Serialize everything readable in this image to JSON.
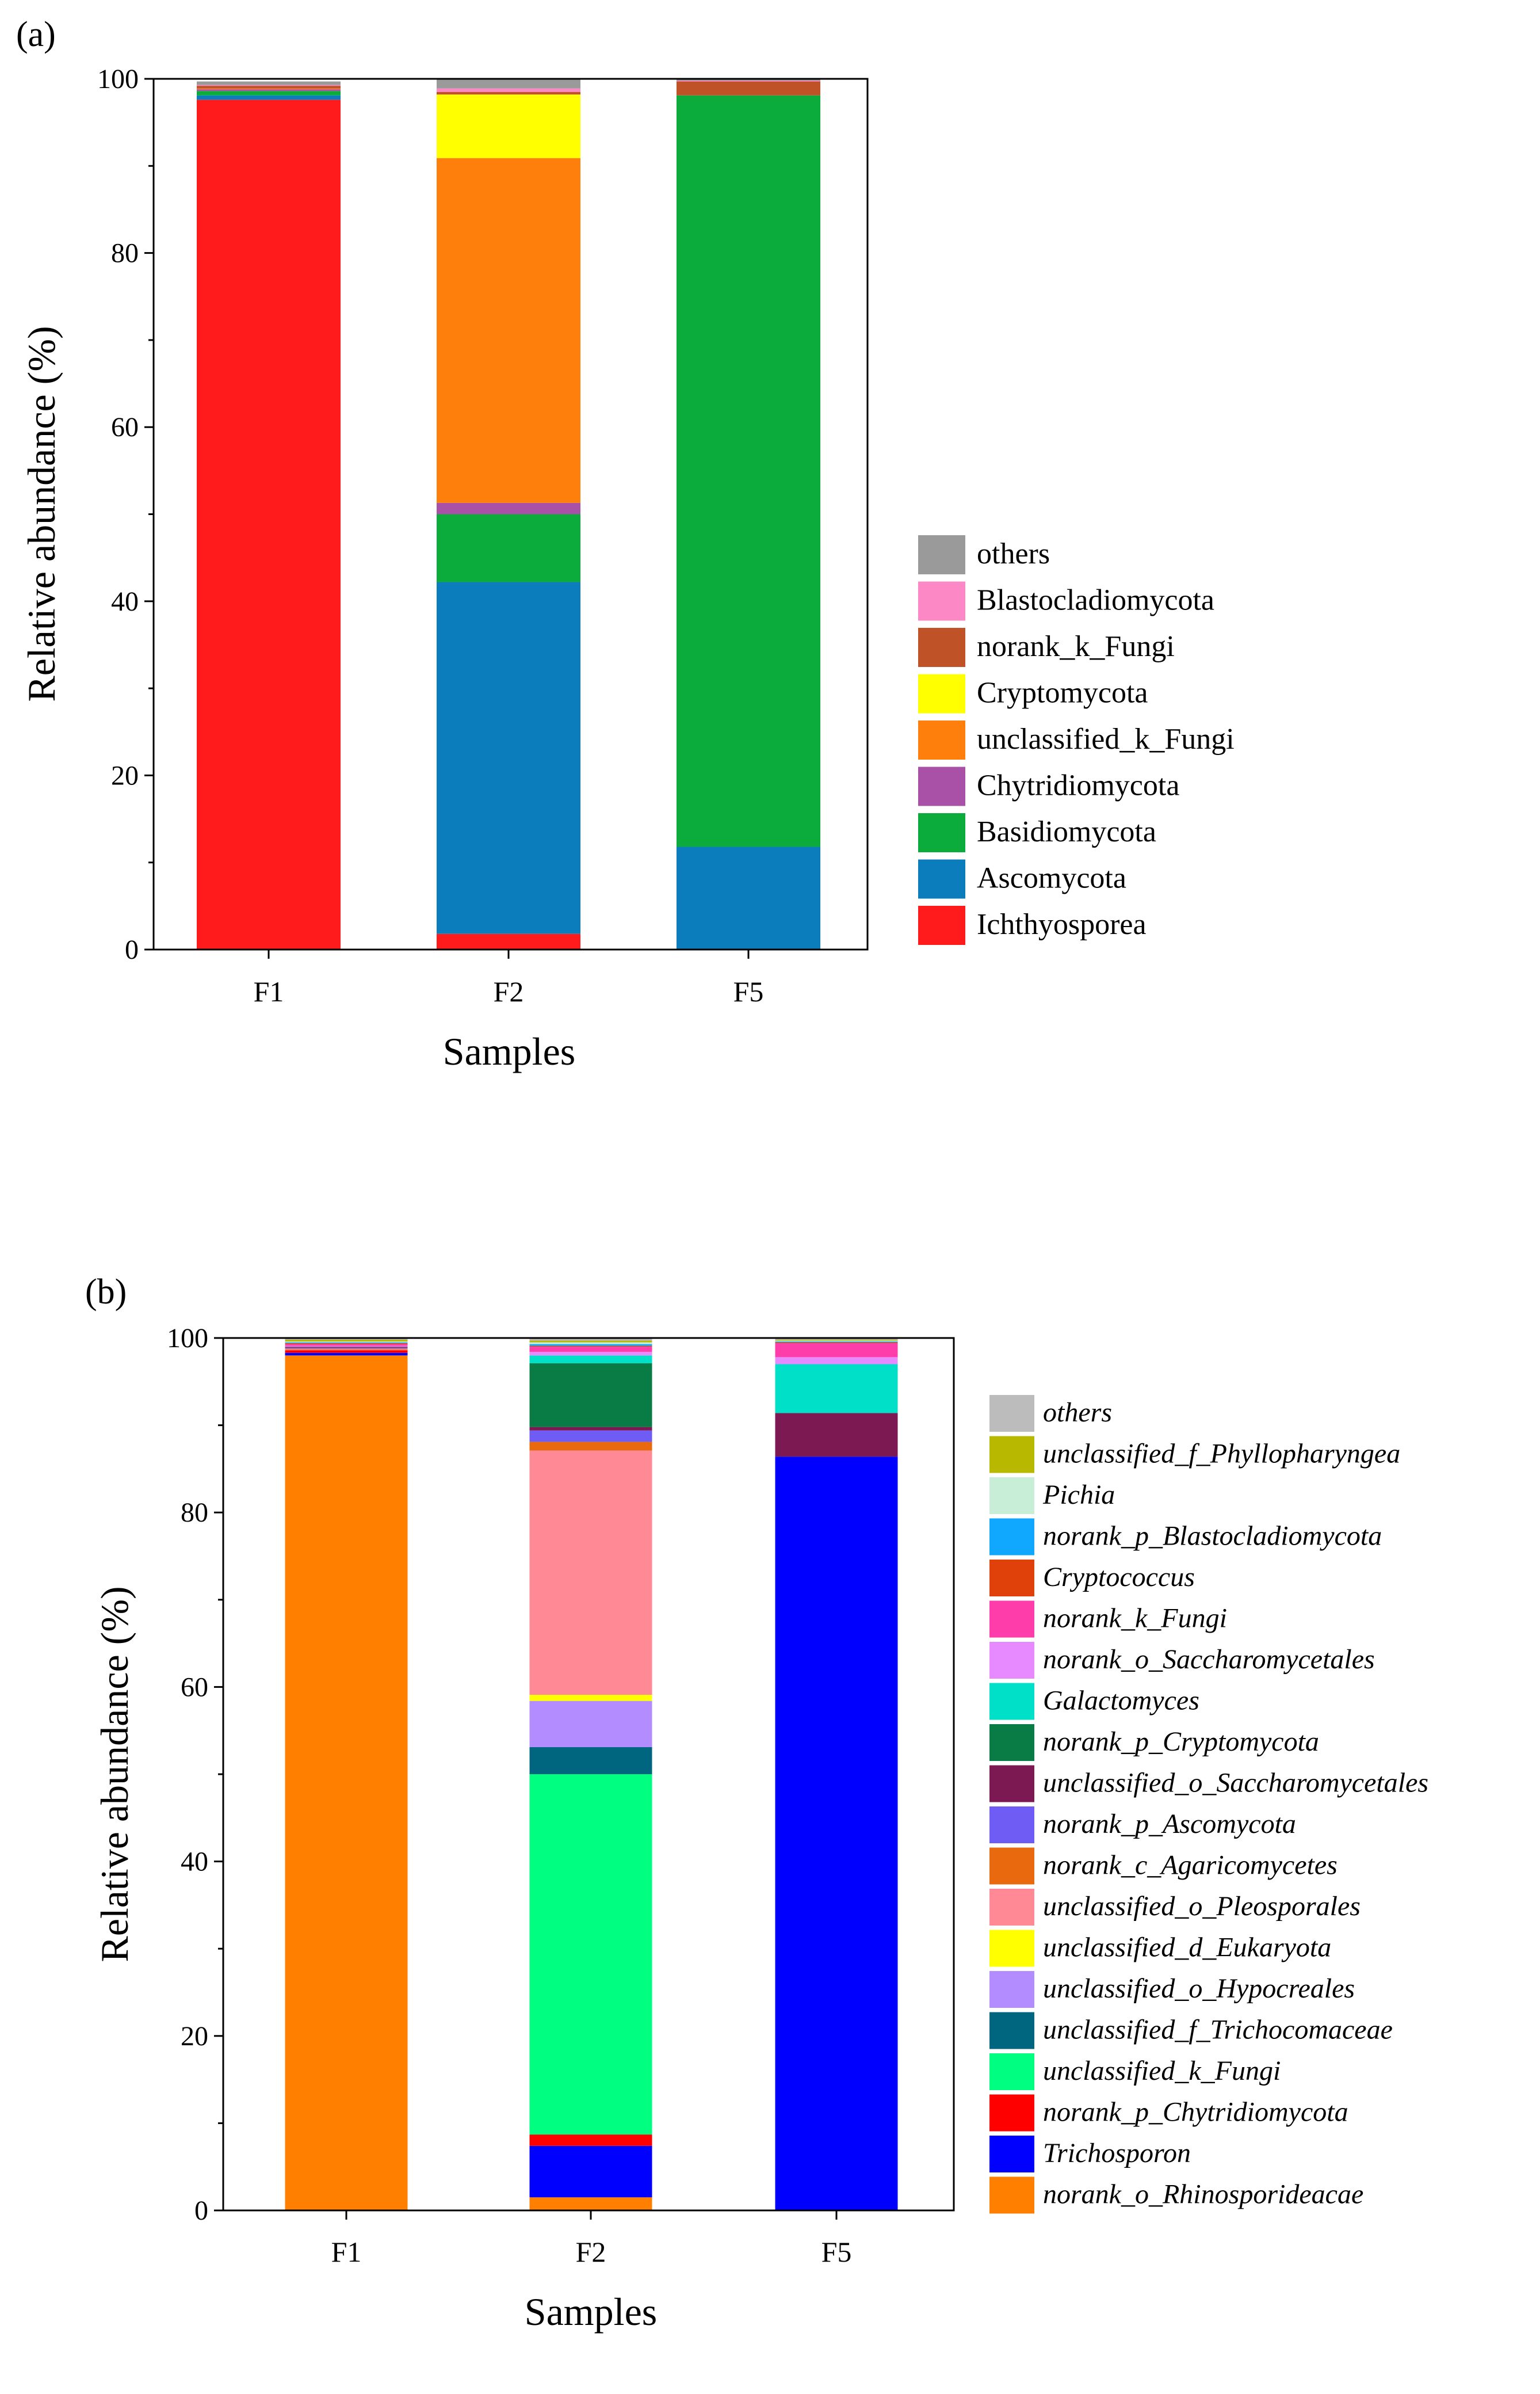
{
  "chart_data": [
    {
      "panel_label": "(a)",
      "type": "stacked-bar",
      "xlabel": "Samples",
      "ylabel": "Relative abundance (%)",
      "ylim": [
        0,
        100
      ],
      "yticks": [
        "0",
        "20",
        "40",
        "60",
        "80",
        "100"
      ],
      "categories": [
        "F1",
        "F2",
        "F5"
      ],
      "legend_position": "right",
      "series": [
        {
          "name": "Ichthyosporea",
          "color": "#ff1b1b",
          "values": [
            97.6,
            1.8,
            0.0
          ]
        },
        {
          "name": "Ascomycota",
          "color": "#0b7dbd",
          "values": [
            0.5,
            40.4,
            11.8
          ]
        },
        {
          "name": "Basidiomycota",
          "color": "#0cac3c",
          "values": [
            0.5,
            7.8,
            86.3
          ]
        },
        {
          "name": "Chytridiomycota",
          "color": "#a851a7",
          "values": [
            0.2,
            1.3,
            0.0
          ]
        },
        {
          "name": "unclassified_k_Fungi",
          "color": "#ff7f0c",
          "values": [
            0.1,
            39.6,
            0.0
          ]
        },
        {
          "name": "Cryptomycota",
          "color": "#ffff00",
          "values": [
            0.0,
            7.3,
            0.0
          ]
        },
        {
          "name": "norank_k_Fungi",
          "color": "#bf5226",
          "values": [
            0.3,
            0.3,
            1.6
          ]
        },
        {
          "name": "Blastocladiomycota",
          "color": "#fc88c6",
          "values": [
            0.1,
            0.4,
            0.1
          ]
        },
        {
          "name": "others",
          "color": "#9a9a9a",
          "values": [
            0.4,
            1.1,
            0.2
          ]
        }
      ],
      "legend": [
        {
          "label": "others",
          "color": "#9a9a9a"
        },
        {
          "label": "Blastocladiomycota",
          "color": "#fc88c6"
        },
        {
          "label": "norank_k_Fungi",
          "color": "#bf5226"
        },
        {
          "label": "Cryptomycota",
          "color": "#ffff00"
        },
        {
          "label": "unclassified_k_Fungi",
          "color": "#ff7f0c"
        },
        {
          "label": "Chytridiomycota",
          "color": "#a851a7"
        },
        {
          "label": "Basidiomycota",
          "color": "#0cac3c"
        },
        {
          "label": "Ascomycota",
          "color": "#0b7dbd"
        },
        {
          "label": "Ichthyosporea",
          "color": "#ff1b1b"
        }
      ]
    },
    {
      "panel_label": "(b)",
      "type": "stacked-bar",
      "xlabel": "Samples",
      "ylabel": "Relative abundance (%)",
      "ylim": [
        0,
        100
      ],
      "yticks": [
        "0",
        "20",
        "40",
        "60",
        "80",
        "100"
      ],
      "categories": [
        "F1",
        "F2",
        "F5"
      ],
      "legend_position": "right",
      "series": [
        {
          "name": "norank_o_Rhinosporideacae",
          "color": "#ff8000",
          "values": [
            98.0,
            1.5,
            0.0
          ]
        },
        {
          "name": "Trichosporon",
          "color": "#0000ff",
          "values": [
            0.3,
            5.9,
            86.4
          ]
        },
        {
          "name": "norank_p_Chytridiomycota",
          "color": "#ff0000",
          "values": [
            0.3,
            1.3,
            0.0
          ]
        },
        {
          "name": "unclassified_k_Fungi",
          "color": "#00ff80",
          "values": [
            0.0,
            41.3,
            0.0
          ]
        },
        {
          "name": "unclassified_f_Trichocomaceae",
          "color": "#006680",
          "values": [
            0.0,
            3.1,
            0.0
          ]
        },
        {
          "name": "unclassified_o_Hypocreales",
          "color": "#b38cff",
          "values": [
            0.0,
            5.3,
            0.0
          ]
        },
        {
          "name": "unclassified_d_Eukaryota",
          "color": "#ffff00",
          "values": [
            0.0,
            0.7,
            0.0
          ]
        },
        {
          "name": "unclassified_o_Pleosporales",
          "color": "#ff8a96",
          "values": [
            0.1,
            28.0,
            0.0
          ]
        },
        {
          "name": "norank_c_Agaricomycetes",
          "color": "#e8690e",
          "values": [
            0.1,
            1.0,
            0.0
          ]
        },
        {
          "name": "norank_p_Ascomycota",
          "color": "#6f5cf4",
          "values": [
            0.1,
            1.3,
            0.0
          ]
        },
        {
          "name": "unclassified_o_Saccharomycetales",
          "color": "#7c1952",
          "values": [
            0.1,
            0.4,
            5.0
          ]
        },
        {
          "name": "norank_p_Cryptomycota",
          "color": "#087c44",
          "values": [
            0.0,
            7.3,
            0.0
          ]
        },
        {
          "name": "Galactomyces",
          "color": "#00e0c8",
          "values": [
            0.0,
            0.9,
            5.6
          ]
        },
        {
          "name": "norank_o_Saccharomycetales",
          "color": "#e88aff",
          "values": [
            0.1,
            0.4,
            0.8
          ]
        },
        {
          "name": "norank_k_Fungi",
          "color": "#ff3daa",
          "values": [
            0.2,
            0.6,
            1.6
          ]
        },
        {
          "name": "Cryptococcus",
          "color": "#e0400a",
          "values": [
            0.1,
            0.1,
            0.1
          ]
        },
        {
          "name": "norank_p_Blastocladiomycota",
          "color": "#10a8ff",
          "values": [
            0.1,
            0.2,
            0.1
          ]
        },
        {
          "name": "Pichia",
          "color": "#c8eed8",
          "values": [
            0.1,
            0.2,
            0.1
          ]
        },
        {
          "name": "unclassified_f_Phyllopharyngea",
          "color": "#b8b800",
          "values": [
            0.2,
            0.2,
            0.1
          ]
        },
        {
          "name": "others",
          "color": "#bcbcbc",
          "values": [
            0.3,
            0.3,
            0.2
          ]
        }
      ],
      "legend": [
        {
          "label": "others",
          "color": "#bcbcbc"
        },
        {
          "label": "unclassified_f_Phyllopharyngea",
          "color": "#b8b800"
        },
        {
          "label": "Pichia",
          "color": "#c8eed8"
        },
        {
          "label": "norank_p_Blastocladiomycota",
          "color": "#10a8ff"
        },
        {
          "label": "Cryptococcus",
          "color": "#e0400a"
        },
        {
          "label": "norank_k_Fungi",
          "color": "#ff3daa"
        },
        {
          "label": "norank_o_Saccharomycetales",
          "color": "#e88aff"
        },
        {
          "label": "Galactomyces",
          "color": "#00e0c8"
        },
        {
          "label": "norank_p_Cryptomycota",
          "color": "#087c44"
        },
        {
          "label": "unclassified_o_Saccharomycetales",
          "color": "#7c1952"
        },
        {
          "label": "norank_p_Ascomycota",
          "color": "#6f5cf4"
        },
        {
          "label": "norank_c_Agaricomycetes",
          "color": "#e8690e"
        },
        {
          "label": "unclassified_o_Pleosporales",
          "color": "#ff8a96"
        },
        {
          "label": "unclassified_d_Eukaryota",
          "color": "#ffff00"
        },
        {
          "label": "unclassified_o_Hypocreales",
          "color": "#b38cff"
        },
        {
          "label": "unclassified_f_Trichocomaceae",
          "color": "#006680"
        },
        {
          "label": "unclassified_k_Fungi",
          "color": "#00ff80"
        },
        {
          "label": "norank_p_Chytridiomycota",
          "color": "#ff0000"
        },
        {
          "label": "Trichosporon",
          "color": "#0000ff"
        },
        {
          "label": "norank_o_Rhinosporideacae",
          "color": "#ff8000"
        }
      ]
    }
  ]
}
